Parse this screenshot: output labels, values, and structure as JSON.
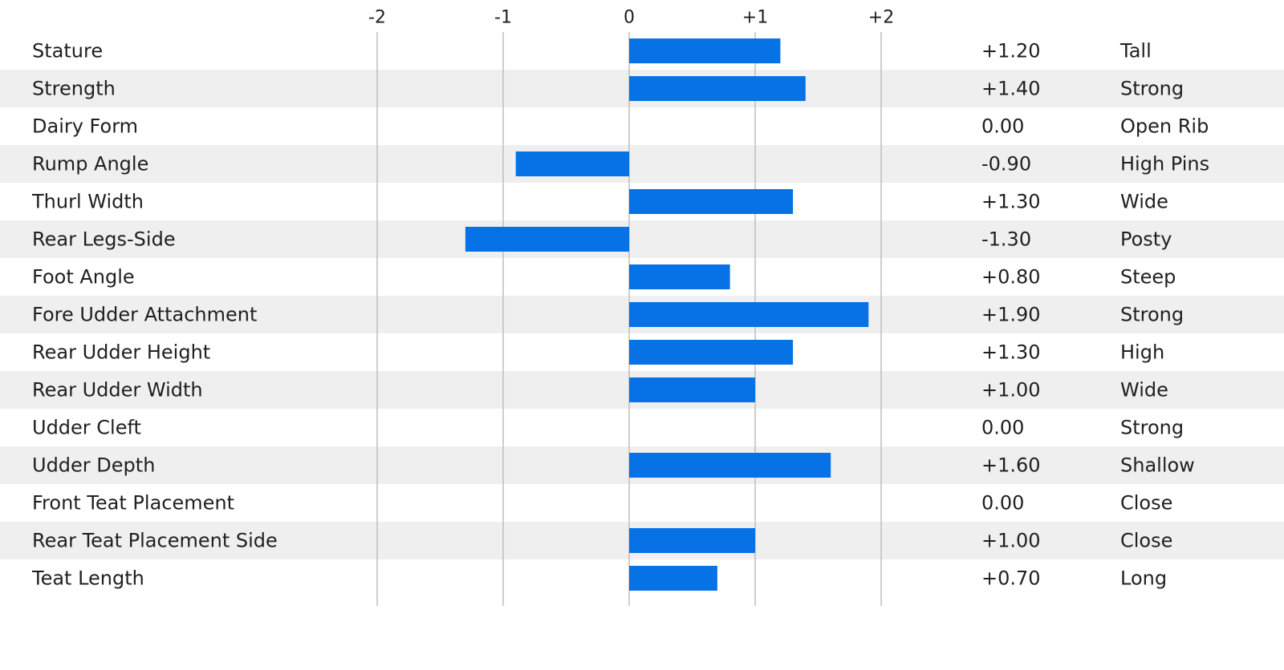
{
  "chart_data": {
    "type": "bar",
    "orientation": "horizontal",
    "xlim": [
      -2,
      2
    ],
    "x_ticks": [
      {
        "value": -2,
        "label": "-2"
      },
      {
        "value": -1,
        "label": "-1"
      },
      {
        "value": 0,
        "label": "0"
      },
      {
        "value": 1,
        "label": "+1"
      },
      {
        "value": 2,
        "label": "+2"
      }
    ],
    "grid": true,
    "bar_color": "#0672e6",
    "stripe_color": "#efefef",
    "grid_color": "#bdbdbd",
    "rows": [
      {
        "trait": "Stature",
        "value": 1.2,
        "value_label": "+1.20",
        "description": "Tall"
      },
      {
        "trait": "Strength",
        "value": 1.4,
        "value_label": "+1.40",
        "description": "Strong"
      },
      {
        "trait": "Dairy Form",
        "value": 0.0,
        "value_label": "0.00",
        "description": "Open Rib"
      },
      {
        "trait": "Rump Angle",
        "value": -0.9,
        "value_label": "-0.90",
        "description": "High Pins"
      },
      {
        "trait": "Thurl Width",
        "value": 1.3,
        "value_label": "+1.30",
        "description": "Wide"
      },
      {
        "trait": "Rear Legs-Side",
        "value": -1.3,
        "value_label": "-1.30",
        "description": "Posty"
      },
      {
        "trait": "Foot Angle",
        "value": 0.8,
        "value_label": "+0.80",
        "description": "Steep"
      },
      {
        "trait": "Fore Udder Attachment",
        "value": 1.9,
        "value_label": "+1.90",
        "description": "Strong"
      },
      {
        "trait": "Rear Udder Height",
        "value": 1.3,
        "value_label": "+1.30",
        "description": "High"
      },
      {
        "trait": "Rear Udder Width",
        "value": 1.0,
        "value_label": "+1.00",
        "description": "Wide"
      },
      {
        "trait": "Udder Cleft",
        "value": 0.0,
        "value_label": "0.00",
        "description": "Strong"
      },
      {
        "trait": "Udder Depth",
        "value": 1.6,
        "value_label": "+1.60",
        "description": "Shallow"
      },
      {
        "trait": "Front Teat Placement",
        "value": 0.0,
        "value_label": "0.00",
        "description": "Close"
      },
      {
        "trait": "Rear Teat Placement Side",
        "value": 1.0,
        "value_label": "+1.00",
        "description": "Close"
      },
      {
        "trait": "Teat Length",
        "value": 0.7,
        "value_label": "+0.70",
        "description": "Long"
      }
    ]
  }
}
